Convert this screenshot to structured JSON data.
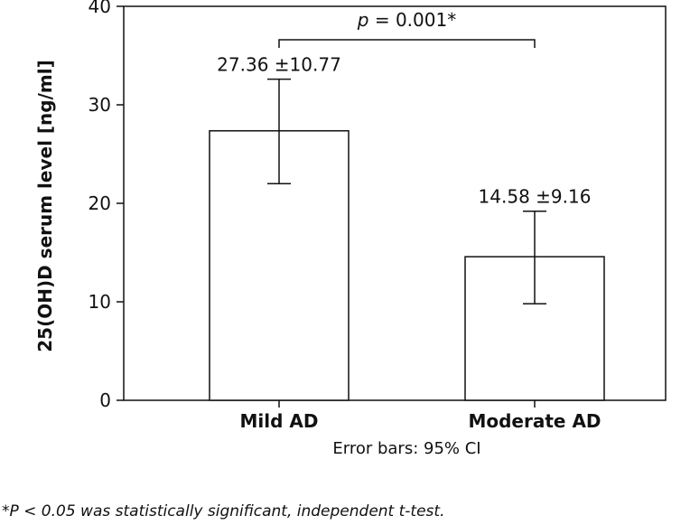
{
  "chart_data": {
    "type": "bar",
    "categories": [
      "Mild AD",
      "Moderate AD"
    ],
    "values": [
      27.36,
      14.58
    ],
    "sd": [
      10.77,
      9.16
    ],
    "error_bars": [
      [
        22.0,
        32.6
      ],
      [
        9.8,
        19.2
      ]
    ],
    "value_labels": [
      "27.36 ±10.77",
      "14.58 ±9.16"
    ],
    "ylabel": "25(OH)D serum level [ng/ml]",
    "ylim": [
      0,
      40
    ],
    "yticks": [
      0,
      10,
      20,
      30,
      40
    ],
    "caption": "Error bars: 95% CI",
    "significance": {
      "text": "p = 0.001*",
      "p_symbol": "p",
      "rest": " = 0.001*",
      "between": [
        "Mild AD",
        "Moderate AD"
      ]
    },
    "grid": false,
    "bar_fill": "#ffffff",
    "line_color": "#111111"
  },
  "footnote": "*P < 0.05 was statistically significant, independent t-test."
}
